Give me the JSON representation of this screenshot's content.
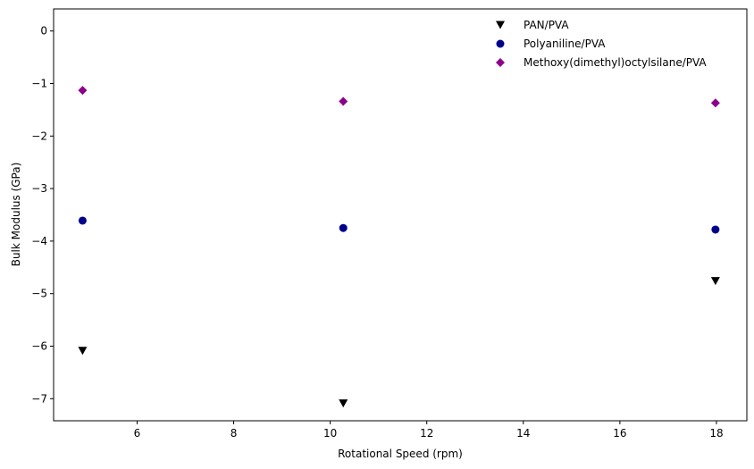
{
  "chart_data": {
    "type": "scatter",
    "title": "",
    "xlabel": "Rotational Speed (rpm)",
    "ylabel": "Bulk Modulus (GPa)",
    "xlim": [
      4.27,
      18.63
    ],
    "ylim": [
      -7.42,
      0.42
    ],
    "xticks": [
      6,
      8,
      10,
      12,
      14,
      16,
      18
    ],
    "yticks": [
      0,
      -1,
      -2,
      -3,
      -4,
      -5,
      -6,
      -7
    ],
    "xtick_labels": [
      "6",
      "8",
      "10",
      "12",
      "14",
      "16",
      "18"
    ],
    "ytick_labels": [
      "0",
      "−1",
      "−2",
      "−3",
      "−4",
      "−5",
      "−6",
      "−7"
    ],
    "grid": false,
    "legend_position": "top-right",
    "series": [
      {
        "name": "PAN/PVA",
        "marker": "triangle-down",
        "color": "#000000",
        "x": [
          4.87,
          10.27,
          17.98
        ],
        "y": [
          -6.09,
          -7.09,
          -4.76
        ]
      },
      {
        "name": "Polyaniline/PVA",
        "marker": "circle",
        "color": "#00008b",
        "x": [
          4.87,
          10.27,
          17.98
        ],
        "y": [
          -3.61,
          -3.75,
          -3.78
        ]
      },
      {
        "name": "Methoxy(dimethyl)octylsilane/PVA",
        "marker": "diamond",
        "color": "#8b008b",
        "x": [
          4.87,
          10.27,
          17.98
        ],
        "y": [
          -1.13,
          -1.34,
          -1.37
        ]
      }
    ]
  }
}
